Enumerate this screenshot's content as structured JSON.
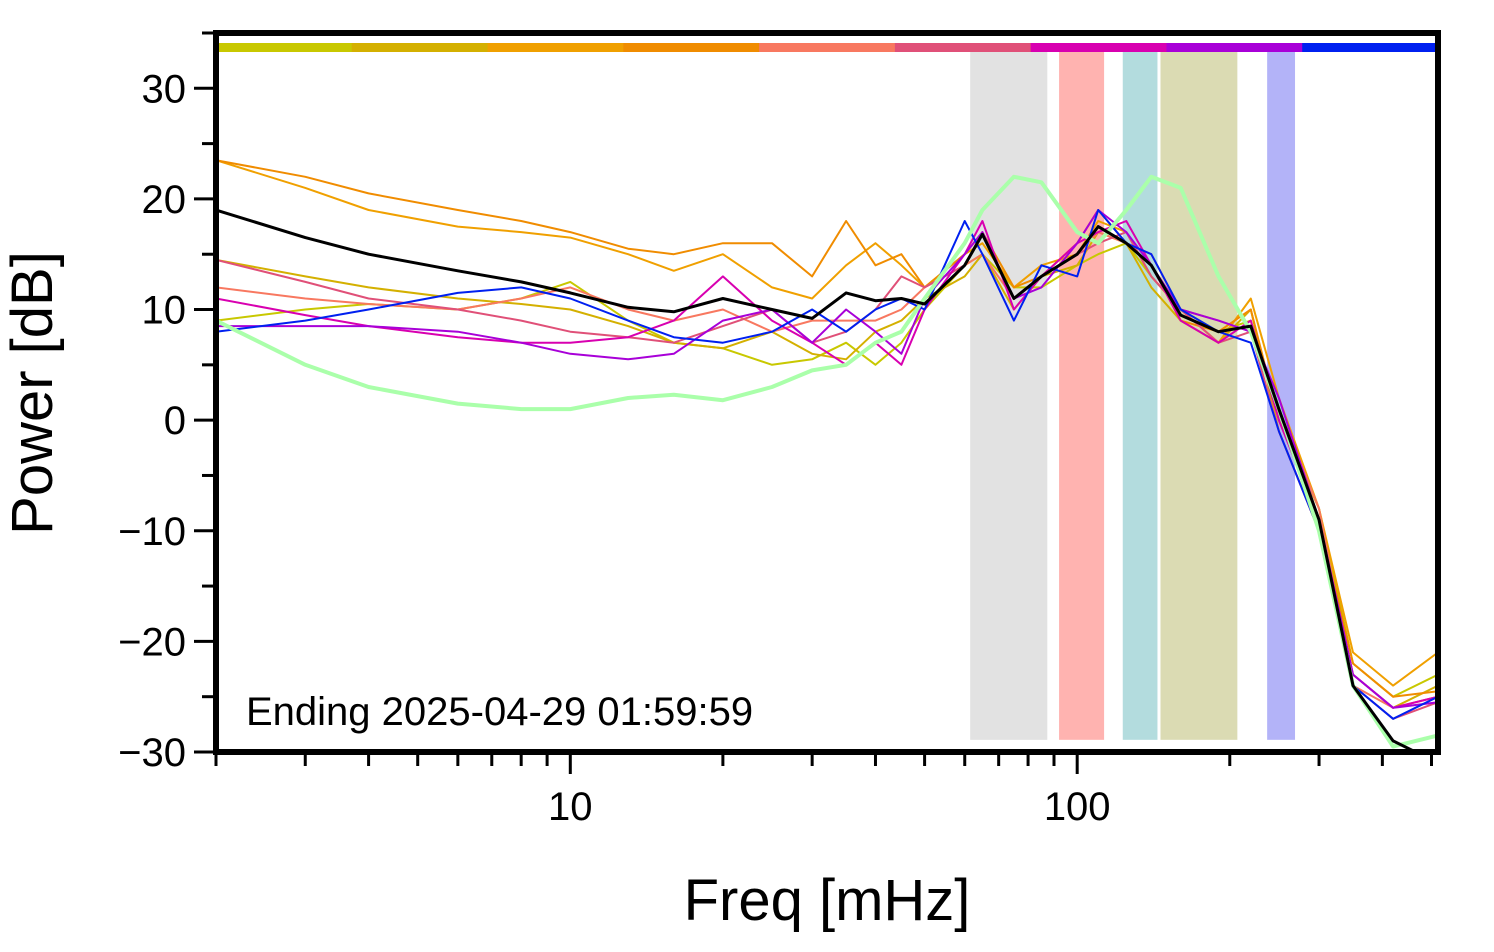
{
  "chart_data": {
    "type": "line",
    "log_x": true,
    "xlabel": "Freq [mHz]",
    "ylabel": "Power [dB]",
    "annotation": "Ending 2025-04-29 01:59:59",
    "xlim": [
      2,
      515
    ],
    "ylim": [
      -30,
      35
    ],
    "xticks": [
      10,
      100
    ],
    "xminor_ticks": [
      2,
      3,
      4,
      5,
      6,
      7,
      8,
      9,
      20,
      30,
      40,
      50,
      60,
      70,
      80,
      90,
      200,
      300,
      400,
      500
    ],
    "yticks": [
      {
        "value": -30,
        "label": "−30"
      },
      {
        "value": -20,
        "label": "−20"
      },
      {
        "value": -10,
        "label": "−10"
      },
      0,
      10,
      20,
      30
    ],
    "yminor_ticks": [
      -25,
      -15,
      -5,
      5,
      15,
      25,
      35
    ],
    "band_ylim": [
      -28.9,
      33.3
    ],
    "bands": [
      {
        "range": [
          61.5,
          87.3
        ],
        "color": "#e2e2e2"
      },
      {
        "range": [
          92.1,
          113
        ],
        "color": "#ffb3b0"
      },
      {
        "range": [
          123,
          144
        ],
        "color": "#b3dcde"
      },
      {
        "range": [
          146,
          207
        ],
        "color": "#dbdbb3"
      },
      {
        "range": [
          237,
          269
        ],
        "color": "#b3b3f8"
      }
    ],
    "x": [
      2,
      3,
      4,
      6,
      8,
      10,
      13,
      16,
      20,
      25,
      30,
      35,
      40,
      45,
      50,
      60,
      65,
      75,
      85,
      100,
      110,
      125,
      140,
      160,
      190,
      220,
      250,
      300,
      350,
      420,
      515
    ],
    "series": [
      {
        "color": "#c8c800",
        "color_bar": true,
        "width": 2,
        "values": [
          9,
          10,
          10.5,
          10,
          11,
          12.5,
          9,
          7,
          6.5,
          5,
          5.5,
          7,
          5,
          7,
          10,
          14,
          15,
          12,
          12,
          14,
          15,
          16,
          13,
          10,
          8,
          9,
          0,
          -8,
          -22,
          -25,
          -23
        ]
      },
      {
        "color": "#d4b000",
        "color_bar": true,
        "width": 2,
        "values": [
          14.5,
          13,
          12,
          11,
          10.5,
          10,
          8.5,
          7,
          6.5,
          8,
          6,
          5.5,
          8,
          9,
          11,
          13,
          15,
          10,
          13,
          14,
          17,
          16,
          12,
          9,
          7,
          10,
          -1,
          -10,
          -23,
          -26,
          -24
        ]
      },
      {
        "color": "#f0a000",
        "color_bar": true,
        "width": 2,
        "values": [
          23.5,
          21,
          19,
          17.5,
          17,
          16.5,
          15,
          13.5,
          15,
          12,
          11,
          14,
          16,
          14,
          12,
          15,
          16,
          12,
          14,
          15,
          18,
          17,
          13,
          10,
          7,
          11,
          2,
          -8,
          -21,
          -24,
          -21
        ]
      },
      {
        "color": "#f08c00",
        "color_bar": true,
        "width": 2,
        "values": [
          23.5,
          22,
          20.5,
          19,
          18,
          17,
          15.5,
          15,
          16,
          16,
          13,
          18,
          14,
          15,
          12,
          15,
          17,
          12,
          13,
          16,
          19,
          16,
          14,
          9,
          8,
          10,
          0,
          -9,
          -22,
          -25,
          -24.5
        ]
      },
      {
        "color": "#f87860",
        "color_bar": true,
        "width": 2,
        "values": [
          12,
          11,
          10.5,
          10,
          11,
          12,
          10,
          9,
          10,
          8,
          9,
          9,
          9,
          10,
          12,
          14,
          15,
          11,
          13,
          15,
          17,
          16,
          15,
          10,
          9,
          8,
          1,
          -8,
          -24,
          -26,
          -25
        ]
      },
      {
        "color": "#e05078",
        "color_bar": true,
        "width": 2,
        "values": [
          14.5,
          12.5,
          11,
          10,
          9,
          8,
          7.5,
          7,
          8.5,
          10,
          7,
          8,
          10,
          13,
          12,
          14,
          17,
          11,
          13,
          15,
          16,
          17,
          13,
          10,
          7,
          8,
          -1,
          -10,
          -24,
          -27,
          -25.5
        ]
      },
      {
        "color": "#d800b0",
        "color_bar": true,
        "width": 2,
        "values": [
          11,
          9.5,
          8.5,
          7.5,
          7,
          7,
          7.5,
          9,
          13,
          9,
          7,
          5,
          7,
          5,
          10,
          15,
          18,
          10,
          13,
          16,
          17,
          18,
          14,
          9,
          7,
          9,
          0,
          -9,
          -23,
          -26,
          -25
        ]
      },
      {
        "color": "#a800d8",
        "color_bar": true,
        "width": 2,
        "values": [
          8.5,
          8.5,
          8.5,
          8,
          7,
          6,
          5.5,
          6,
          9,
          10,
          7,
          10,
          8,
          6,
          11,
          15,
          17,
          11,
          12,
          16,
          19,
          17,
          14,
          10,
          9,
          8,
          2,
          -9,
          -23,
          -26,
          -25.5
        ]
      },
      {
        "color": "#0020f0",
        "color_bar": true,
        "width": 2,
        "values": [
          8,
          9,
          10,
          11.5,
          12,
          11,
          9,
          7.5,
          7,
          8,
          10,
          8,
          10,
          11,
          10,
          18,
          15,
          9,
          14,
          13,
          19,
          16,
          15,
          10,
          8,
          7,
          -1,
          -10,
          -24,
          -27,
          -25
        ]
      },
      {
        "color": "#aaffaa",
        "width": 4,
        "values": [
          9,
          5,
          3,
          1.5,
          1,
          1,
          2,
          2.3,
          1.8,
          3,
          4.5,
          5,
          7,
          8,
          11,
          16,
          19,
          22,
          21.5,
          17,
          16,
          19,
          22,
          21,
          13,
          8,
          1,
          -10,
          -24,
          -29.5,
          -28.5
        ]
      },
      {
        "color": "#000000",
        "width": 3,
        "values": [
          19,
          16.5,
          15,
          13.5,
          12.5,
          11.5,
          10.2,
          9.8,
          11,
          10,
          9.2,
          11.5,
          10.8,
          11,
          10.5,
          14,
          16.8,
          11,
          13,
          15,
          17.5,
          16,
          14,
          9.5,
          8,
          8.5,
          1,
          -9,
          -24,
          -29,
          -31
        ]
      }
    ]
  }
}
